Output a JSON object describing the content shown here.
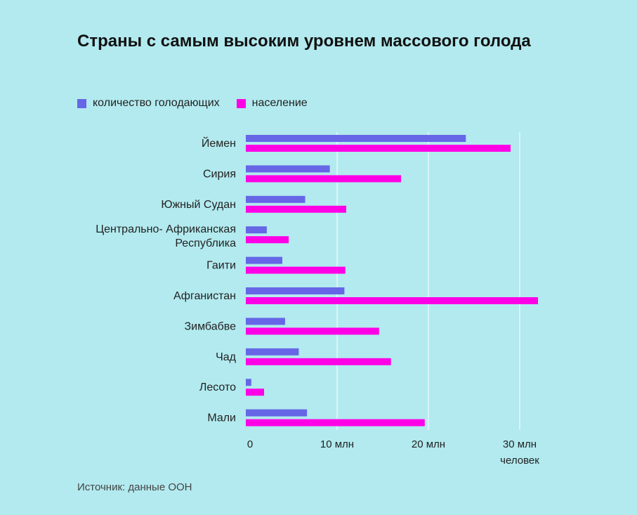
{
  "title": "Страны с самым высоким уровнем массового голода",
  "source": "Источник: данные ООН",
  "colors": {
    "background": "#b2eaef",
    "hungry": "#6666e6",
    "population": "#ff00e6",
    "grid": "#ffffff"
  },
  "chart_data": {
    "type": "bar",
    "orientation": "horizontal",
    "categories": [
      "Йемен",
      "Сирия",
      "Южный Судан",
      "Центрально- Африканская Республика",
      "Гаити",
      "Афганистан",
      "Зимбабве",
      "Чад",
      "Лесото",
      "Мали"
    ],
    "series": [
      {
        "name": "количество голодающих",
        "values": [
          24.1,
          9.2,
          6.5,
          2.3,
          4.0,
          10.8,
          4.3,
          5.8,
          0.6,
          6.7
        ]
      },
      {
        "name": "население",
        "values": [
          29.0,
          17.0,
          11.0,
          4.7,
          10.9,
          32.0,
          14.6,
          15.9,
          2.0,
          19.6
        ]
      }
    ],
    "xlim": [
      0,
      33
    ],
    "xticks": [
      0,
      10,
      20,
      30
    ],
    "xtick_labels": [
      "0",
      "10 млн",
      "20 млн",
      "30 млн"
    ],
    "xlabel": "человек",
    "grid": true,
    "legend_position": "top-left"
  }
}
